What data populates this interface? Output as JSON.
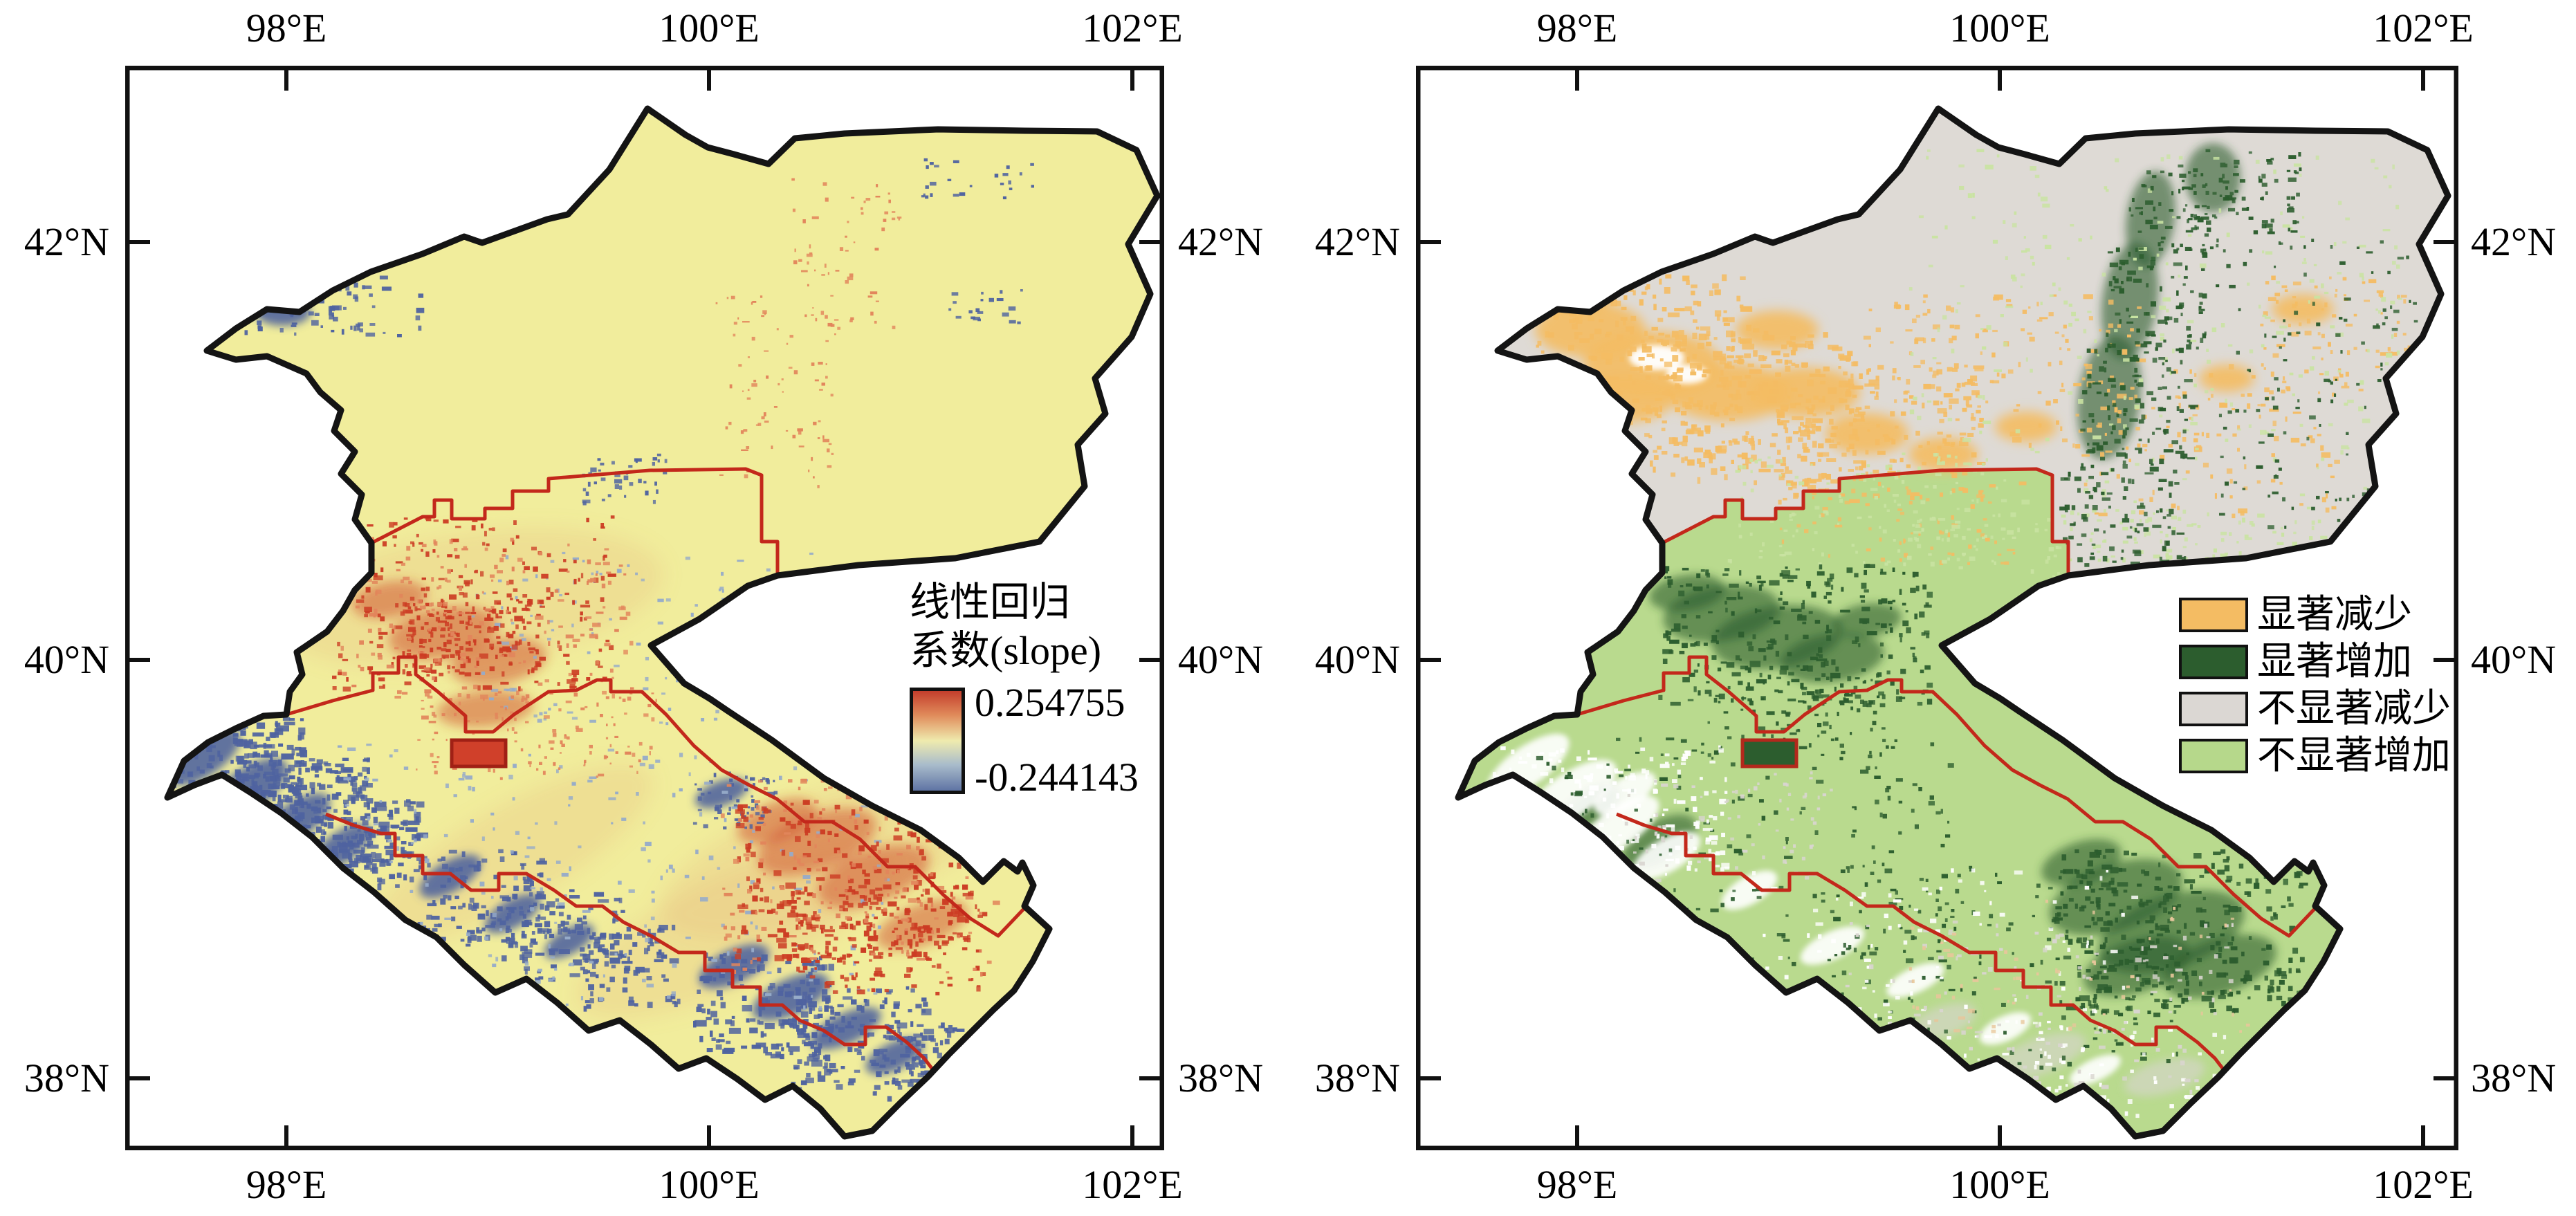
{
  "figure": {
    "background": "#ffffff"
  },
  "panel_slope": {
    "x_tick_labels": [
      "98°E",
      "100°E",
      "102°E"
    ],
    "y_tick_labels": [
      "42°N",
      "40°N",
      "38°N"
    ],
    "legend": {
      "title_line1": "线性回归",
      "title_line2": "系数(slope)",
      "max_value": "0.254755",
      "min_value": "-0.244143",
      "gradient": [
        "#c43e2c",
        "#e08a5a",
        "#efebae",
        "#a9bccb",
        "#5f74a4"
      ]
    }
  },
  "panel_significance": {
    "x_tick_labels": [
      "98°E",
      "100°E",
      "102°E"
    ],
    "y_tick_labels": [
      "42°N",
      "40°N",
      "38°N"
    ],
    "legend_items": [
      {
        "label": "显著减少",
        "color": "#f4bc63"
      },
      {
        "label": "显著增加",
        "color": "#2c5d2e"
      },
      {
        "label": "不显著减少",
        "color": "#dbd7d3"
      },
      {
        "label": "不显著增加",
        "color": "#b6d88b"
      }
    ]
  },
  "map": {
    "slope_base_color": "#f1ed9c",
    "slope_decrease_color": "#51659e",
    "slope_increase_color": "#cc3d24",
    "nonsig_decrease_color": "#dedad5",
    "nonsig_increase_color": "#b9da8e",
    "sig_decrease_color": "#f4bc63",
    "sig_increase_color": "#2c5d2e",
    "basin_outline_color": "#141414",
    "admin_boundary_color": "#c3281b"
  }
}
